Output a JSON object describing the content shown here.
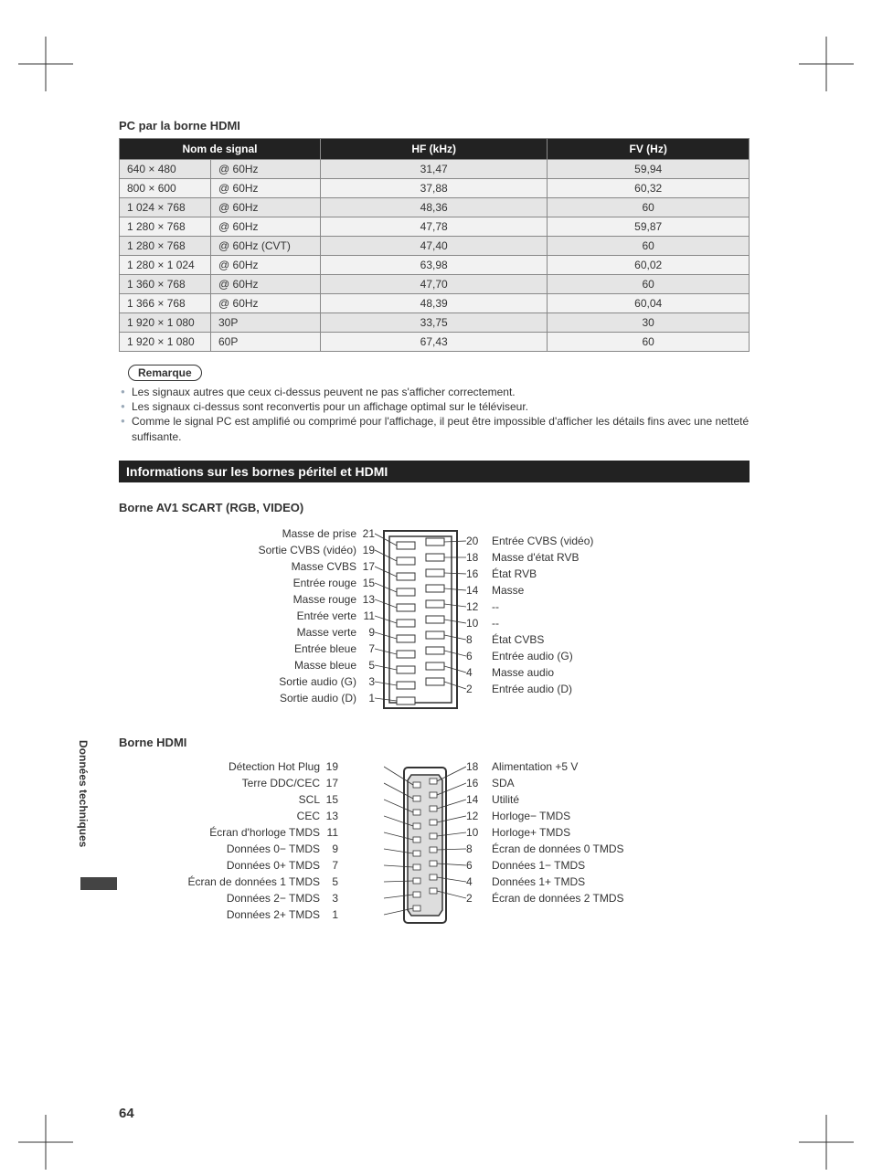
{
  "section_title": "PC par la borne HDMI",
  "table": {
    "headers": [
      "Nom de signal",
      "HF (kHz)",
      "FV (Hz)"
    ],
    "rows": [
      {
        "res": "640 × 480",
        "rate": "@ 60Hz",
        "hf": "31,47",
        "fv": "59,94"
      },
      {
        "res": "800 × 600",
        "rate": "@ 60Hz",
        "hf": "37,88",
        "fv": "60,32"
      },
      {
        "res": "1 024 × 768",
        "rate": "@ 60Hz",
        "hf": "48,36",
        "fv": "60"
      },
      {
        "res": "1 280 × 768",
        "rate": "@ 60Hz",
        "hf": "47,78",
        "fv": "59,87"
      },
      {
        "res": "1 280 × 768",
        "rate": "@ 60Hz (CVT)",
        "hf": "47,40",
        "fv": "60"
      },
      {
        "res": "1 280 × 1 024",
        "rate": "@ 60Hz",
        "hf": "63,98",
        "fv": "60,02"
      },
      {
        "res": "1 360 × 768",
        "rate": "@ 60Hz",
        "hf": "47,70",
        "fv": "60"
      },
      {
        "res": "1 366 × 768",
        "rate": "@ 60Hz",
        "hf": "48,39",
        "fv": "60,04"
      },
      {
        "res": "1 920 × 1 080",
        "rate": "30P",
        "hf": "33,75",
        "fv": "30"
      },
      {
        "res": "1 920 × 1 080",
        "rate": "60P",
        "hf": "67,43",
        "fv": "60"
      }
    ]
  },
  "remark_label": "Remarque",
  "notes": [
    "Les signaux autres que ceux ci-dessus peuvent ne pas s'afficher correctement.",
    "Les signaux ci-dessus sont reconvertis pour un affichage optimal sur le téléviseur.",
    "Comme le signal PC est amplifié ou comprimé pour l'affichage, il peut être impossible d'afficher les détails fins avec une netteté suffisante."
  ],
  "band_title": "Informations sur les bornes péritel et HDMI",
  "scart": {
    "title": "Borne AV1 SCART (RGB, VIDEO)",
    "left": [
      {
        "label": "Masse de prise",
        "pin": "21"
      },
      {
        "label": "Sortie CVBS (vidéo)",
        "pin": "19"
      },
      {
        "label": "Masse CVBS",
        "pin": "17"
      },
      {
        "label": "Entrée rouge",
        "pin": "15"
      },
      {
        "label": "Masse rouge",
        "pin": "13"
      },
      {
        "label": "Entrée verte",
        "pin": "11"
      },
      {
        "label": "Masse verte",
        "pin": "9"
      },
      {
        "label": "Entrée bleue",
        "pin": "7"
      },
      {
        "label": "Masse bleue",
        "pin": "5"
      },
      {
        "label": "Sortie audio (G)",
        "pin": "3"
      },
      {
        "label": "Sortie audio (D)",
        "pin": "1"
      }
    ],
    "right": [
      {
        "pin": "20",
        "label": "Entrée CVBS (vidéo)"
      },
      {
        "pin": "18",
        "label": "Masse d'état RVB"
      },
      {
        "pin": "16",
        "label": "État RVB"
      },
      {
        "pin": "14",
        "label": "Masse"
      },
      {
        "pin": "12",
        "label": "--"
      },
      {
        "pin": "10",
        "label": "--"
      },
      {
        "pin": "8",
        "label": "État CVBS"
      },
      {
        "pin": "6",
        "label": "Entrée audio (G)"
      },
      {
        "pin": "4",
        "label": "Masse audio"
      },
      {
        "pin": "2",
        "label": "Entrée audio (D)"
      }
    ]
  },
  "hdmi": {
    "title": "Borne HDMI",
    "left": [
      {
        "label": "Détection Hot Plug",
        "pin": "19"
      },
      {
        "label": "Terre DDC/CEC",
        "pin": "17"
      },
      {
        "label": "SCL",
        "pin": "15"
      },
      {
        "label": "CEC",
        "pin": "13"
      },
      {
        "label": "Écran d'horloge TMDS",
        "pin": "11"
      },
      {
        "label": "Données 0− TMDS",
        "pin": "9"
      },
      {
        "label": "Données 0+ TMDS",
        "pin": "7"
      },
      {
        "label": "Écran de données 1 TMDS",
        "pin": "5"
      },
      {
        "label": "Données 2− TMDS",
        "pin": "3"
      },
      {
        "label": "Données 2+ TMDS",
        "pin": "1"
      }
    ],
    "right": [
      {
        "pin": "18",
        "label": "Alimentation +5 V"
      },
      {
        "pin": "16",
        "label": "SDA"
      },
      {
        "pin": "14",
        "label": "Utilité"
      },
      {
        "pin": "12",
        "label": "Horloge− TMDS"
      },
      {
        "pin": "10",
        "label": "Horloge+ TMDS"
      },
      {
        "pin": "8",
        "label": "Écran de données 0 TMDS"
      },
      {
        "pin": "6",
        "label": "Données 1− TMDS"
      },
      {
        "pin": "4",
        "label": "Données 1+ TMDS"
      },
      {
        "pin": "2",
        "label": "Écran de données 2 TMDS"
      }
    ]
  },
  "side_tab": "Données techniques",
  "page_number": "64"
}
